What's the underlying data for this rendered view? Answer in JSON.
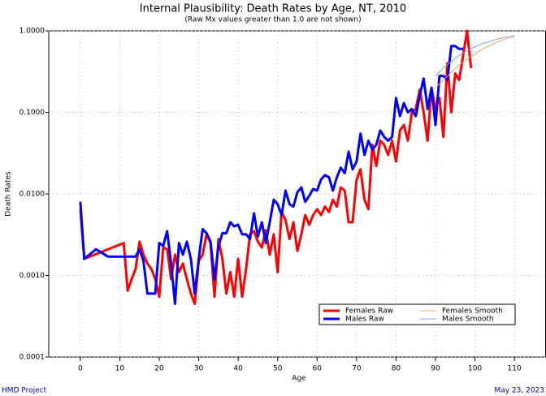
{
  "chart_data": {
    "type": "line",
    "title": "Internal Plausibility: Death Rates by Age, NT, 2010",
    "subtitle": "(Raw Mx values greater than 1.0 are not shown)",
    "x_label": "Age",
    "y_label": "Death Rates",
    "footer_left": "HMD Project",
    "footer_right": "May 23, 2023",
    "log_y": true,
    "grid": true,
    "legend": "lower right",
    "xlim": [
      -8,
      118
    ],
    "ylim": [
      0.0001,
      1
    ],
    "xticks": [
      0,
      10,
      20,
      30,
      40,
      50,
      60,
      70,
      80,
      90,
      100,
      110
    ],
    "yticks": [
      {
        "value": 1,
        "label": "1.0000"
      },
      {
        "value": 0.1,
        "label": "0.1000"
      },
      {
        "value": 0.01,
        "label": "0.0100"
      },
      {
        "value": 0.001,
        "label": "0.0010"
      },
      {
        "value": 0.0001,
        "label": "0.0001"
      }
    ],
    "series": [
      {
        "name": "Females Raw",
        "color": "#ff0000",
        "line_width": 3,
        "x": [
          0,
          1,
          11,
          12,
          13,
          14,
          15,
          16,
          17,
          18,
          19,
          20,
          21,
          22,
          23,
          24,
          25,
          26,
          27,
          28,
          29,
          30,
          31,
          32,
          33,
          34,
          35,
          36,
          37,
          38,
          39,
          40,
          41,
          42,
          43,
          44,
          45,
          46,
          47,
          48,
          49,
          50,
          51,
          52,
          53,
          54,
          55,
          56,
          57,
          58,
          59,
          60,
          61,
          62,
          63,
          64,
          65,
          66,
          67,
          68,
          69,
          70,
          71,
          72,
          73,
          74,
          75,
          76,
          77,
          78,
          79,
          80,
          81,
          82,
          83,
          84,
          85,
          86,
          87,
          88,
          89,
          90,
          91,
          92,
          93,
          94,
          95,
          96,
          97,
          98,
          99
        ],
        "values": [
          0.0065,
          0.0016,
          0.0025,
          0.00065,
          0.0009,
          0.0012,
          0.0026,
          0.0018,
          0.0014,
          0.0012,
          0.0009,
          0.00055,
          0.0022,
          0.0021,
          0.0009,
          0.0018,
          0.0011,
          0.0014,
          0.0009,
          0.0006,
          0.00045,
          0.0015,
          0.0018,
          0.0032,
          0.0025,
          0.00055,
          0.0028,
          0.0016,
          0.0006,
          0.0011,
          0.00055,
          0.0016,
          0.00055,
          0.0012,
          0.0032,
          0.0035,
          0.0026,
          0.0022,
          0.0036,
          0.0018,
          0.0032,
          0.0011,
          0.006,
          0.0048,
          0.0028,
          0.0045,
          0.002,
          0.0032,
          0.0055,
          0.0042,
          0.0055,
          0.0065,
          0.0055,
          0.007,
          0.006,
          0.0085,
          0.007,
          0.012,
          0.011,
          0.0045,
          0.0045,
          0.015,
          0.02,
          0.0085,
          0.0065,
          0.04,
          0.022,
          0.045,
          0.04,
          0.03,
          0.045,
          0.025,
          0.06,
          0.07,
          0.045,
          0.1,
          0.11,
          0.19,
          0.1,
          0.045,
          0.2,
          0.11,
          0.15,
          0.05,
          0.4,
          0.1,
          0.3,
          0.25,
          0.5,
          1.0,
          0.35
        ]
      },
      {
        "name": "Males Raw",
        "color": "#0000ff",
        "line_width": 3,
        "x": [
          0,
          1,
          4,
          7,
          14,
          15,
          16,
          17,
          18,
          19,
          20,
          21,
          22,
          23,
          24,
          25,
          26,
          27,
          28,
          29,
          30,
          31,
          32,
          33,
          34,
          35,
          36,
          37,
          38,
          39,
          40,
          41,
          42,
          43,
          44,
          45,
          46,
          47,
          48,
          49,
          50,
          51,
          52,
          53,
          54,
          55,
          56,
          57,
          58,
          59,
          60,
          61,
          62,
          63,
          64,
          65,
          66,
          67,
          68,
          69,
          70,
          71,
          72,
          73,
          74,
          75,
          76,
          77,
          78,
          79,
          80,
          81,
          82,
          83,
          84,
          85,
          86,
          87,
          88,
          89,
          90,
          91,
          92,
          93,
          94,
          95,
          96,
          97
        ],
        "values": [
          0.008,
          0.0016,
          0.0021,
          0.0017,
          0.0017,
          0.0021,
          0.0015,
          0.0006,
          0.0006,
          0.0006,
          0.0025,
          0.0023,
          0.0035,
          0.0014,
          0.00045,
          0.0025,
          0.0018,
          0.0026,
          0.0016,
          0.0006,
          0.0016,
          0.0037,
          0.0033,
          0.0026,
          0.0009,
          0.0023,
          0.0033,
          0.0033,
          0.0045,
          0.004,
          0.0042,
          0.0032,
          0.0032,
          0.0028,
          0.0058,
          0.003,
          0.0045,
          0.0025,
          0.0045,
          0.0085,
          0.0075,
          0.0055,
          0.011,
          0.0075,
          0.007,
          0.0105,
          0.012,
          0.008,
          0.0095,
          0.0115,
          0.011,
          0.015,
          0.017,
          0.016,
          0.011,
          0.016,
          0.021,
          0.018,
          0.033,
          0.02,
          0.025,
          0.055,
          0.03,
          0.045,
          0.035,
          0.04,
          0.06,
          0.05,
          0.045,
          0.05,
          0.15,
          0.09,
          0.13,
          0.1,
          0.11,
          0.09,
          0.16,
          0.26,
          0.11,
          0.2,
          0.07,
          0.28,
          0.28,
          0.25,
          0.65,
          0.65,
          0.6,
          0.6
        ]
      },
      {
        "name": "Females Smooth",
        "color": "#f4a070",
        "line_width": 1,
        "x": [
          90,
          92,
          94,
          96,
          98,
          100,
          102,
          104,
          106,
          108,
          110
        ],
        "values": [
          0.2,
          0.25,
          0.31,
          0.38,
          0.45,
          0.52,
          0.6,
          0.67,
          0.74,
          0.8,
          0.85
        ]
      },
      {
        "name": "Males Smooth",
        "color": "#8aa4f0",
        "line_width": 1,
        "x": [
          90,
          92,
          94,
          96,
          98,
          100,
          102,
          104,
          106,
          108,
          110
        ],
        "values": [
          0.28,
          0.35,
          0.42,
          0.5,
          0.57,
          0.64,
          0.7,
          0.75,
          0.8,
          0.84,
          0.87
        ]
      }
    ]
  }
}
